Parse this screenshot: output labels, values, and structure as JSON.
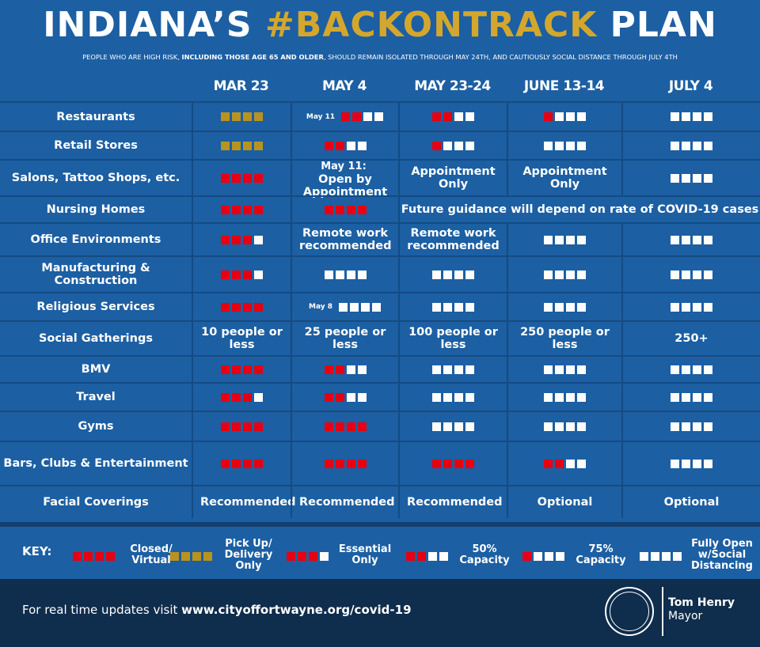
{
  "title_plain_1": "INDIANA’S ",
  "title_hash": "#BACKONTRACK",
  "title_plain_2": " PLAN",
  "subtitle_pre": "PEOPLE WHO ARE HIGH RISK, ",
  "subtitle_bold": "INCLUDING THOSE AGE 65 AND OLDER",
  "subtitle_post": ", SHOULD REMAIN ISOLATED THROUGH MAY 24TH, AND CAUTIOUSLY SOCIAL DISTANCE THROUGH JULY 4TH",
  "columns": [
    "MAR 23",
    "MAY 4",
    "MAY 23-24",
    "JUNE 13-14",
    "JULY 4"
  ],
  "rows": [
    {
      "label": "Restaurants",
      "cells": [
        {
          "sq": "gggg"
        },
        {
          "note": "May 11",
          "sq": "rrww"
        },
        {
          "sq": "rrww"
        },
        {
          "sq": "rwww"
        },
        {
          "sq": "wwww"
        }
      ]
    },
    {
      "label": "Retail Stores",
      "cells": [
        {
          "sq": "gggg"
        },
        {
          "sq": "rrww"
        },
        {
          "sq": "rwww"
        },
        {
          "sq": "wwww"
        },
        {
          "sq": "wwww"
        }
      ]
    },
    {
      "label": "Salons, Tattoo Shops, etc.",
      "cells": [
        {
          "sq": "rrrr"
        },
        {
          "note": "May 11:",
          "text": "Open by Appointment"
        },
        {
          "text": "Appointment Only"
        },
        {
          "text": "Appointment Only"
        },
        {
          "sq": "wwww"
        }
      ]
    },
    {
      "label": "Nursing Homes",
      "cells": [
        {
          "sq": "rrrr"
        },
        {
          "sq": "rrrr"
        }
      ],
      "span_text": "Future guidance will depend on rate of COVID-19 cases"
    },
    {
      "label": "Office Environments",
      "cells": [
        {
          "sq": "rrrw"
        },
        {
          "text": "Remote work recommended"
        },
        {
          "text": "Remote work recommended"
        },
        {
          "sq": "wwww"
        },
        {
          "sq": "wwww"
        }
      ]
    },
    {
      "label": "Manufacturing & Construction",
      "cells": [
        {
          "sq": "rrrw"
        },
        {
          "sq": "wwww"
        },
        {
          "sq": "wwww"
        },
        {
          "sq": "wwww"
        },
        {
          "sq": "wwww"
        }
      ]
    },
    {
      "label": "Religious Services",
      "cells": [
        {
          "sq": "rrrr"
        },
        {
          "note": "May 8",
          "sq": "wwww"
        },
        {
          "sq": "wwww"
        },
        {
          "sq": "wwww"
        },
        {
          "sq": "wwww"
        }
      ]
    },
    {
      "label": "Social Gatherings",
      "cells": [
        {
          "text": "10 people or less"
        },
        {
          "text": "25 people or less"
        },
        {
          "text": "100 people or less"
        },
        {
          "text": "250 people or less"
        },
        {
          "text": "250+"
        }
      ]
    },
    {
      "label": "BMV",
      "cells": [
        {
          "sq": "rrrr"
        },
        {
          "sq": "rrww"
        },
        {
          "sq": "wwww"
        },
        {
          "sq": "wwww"
        },
        {
          "sq": "wwww"
        }
      ]
    },
    {
      "label": "Travel",
      "cells": [
        {
          "sq": "rrrw"
        },
        {
          "sq": "rrww"
        },
        {
          "sq": "wwww"
        },
        {
          "sq": "wwww"
        },
        {
          "sq": "wwww"
        }
      ]
    },
    {
      "label": "Gyms",
      "cells": [
        {
          "sq": "rrrr"
        },
        {
          "sq": "rrrr"
        },
        {
          "sq": "wwww"
        },
        {
          "sq": "wwww"
        },
        {
          "sq": "wwww"
        }
      ]
    },
    {
      "label": "Bars, Clubs & Entertainment",
      "cells": [
        {
          "sq": "rrrr"
        },
        {
          "sq": "rrrr"
        },
        {
          "sq": "rrrr"
        },
        {
          "sq": "rrww"
        },
        {
          "sq": "wwww"
        }
      ]
    },
    {
      "label": "Facial Coverings",
      "cells": [
        {
          "text": "Recommended"
        },
        {
          "text": "Recommended"
        },
        {
          "text": "Recommended"
        },
        {
          "text": "Optional"
        },
        {
          "text": "Optional"
        }
      ]
    }
  ],
  "key": {
    "label": "KEY:",
    "items": [
      {
        "sq": "rrrr",
        "text": "Closed/ Virtual"
      },
      {
        "sq": "gggg",
        "text": "Pick Up/ Delivery Only"
      },
      {
        "sq": "rrrw",
        "text": "Essential Only"
      },
      {
        "sq": "rrww",
        "text": "50% Capacity"
      },
      {
        "sq": "rwww",
        "text": "75% Capacity"
      },
      {
        "sq": "wwww",
        "text": "Fully Open w/Social Distancing"
      }
    ]
  },
  "footer": {
    "visit_pre": "For real time updates visit ",
    "visit_url": "www.cityoffortwayne.org/covid-19",
    "mayor_name": "Tom Henry",
    "mayor_title": "Mayor"
  },
  "colors": {
    "closed": "#e60012",
    "pickup": "#b8941f",
    "open": "#ffffff",
    "background": "#1c5fa3",
    "footer": "#0f2d4c"
  }
}
